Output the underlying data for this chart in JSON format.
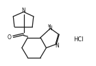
{
  "bg_color": "#ffffff",
  "line_color": "#1a1a1a",
  "line_width": 0.9,
  "text_color": "#1a1a1a",
  "hcl_label": "HCl",
  "h_label": "H",
  "nh_label": "N",
  "n_label": "N",
  "o_label": "O"
}
